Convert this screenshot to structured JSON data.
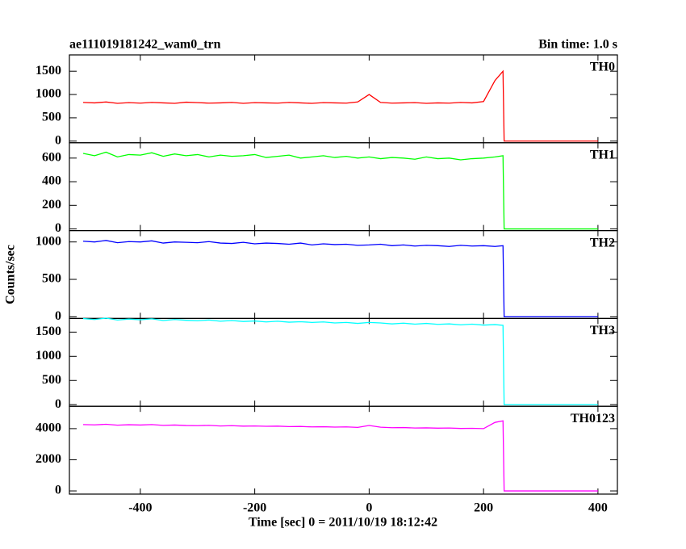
{
  "figure": {
    "title": "ae111019181242_wam0_trn",
    "bin_time": "Bin time: 1.0 s",
    "ylabel": "Counts/sec",
    "xlabel": "Time [sec] 0 = 2011/10/19 18:12:42"
  },
  "chart_data": [
    {
      "type": "line",
      "xlim": [
        -524,
        434
      ],
      "xticks": [
        -400,
        -200,
        0,
        200,
        400
      ],
      "ylim": [
        -35,
        1850
      ],
      "yticks": [
        0,
        500,
        1000,
        1500
      ],
      "x": [
        -500,
        -480,
        -460,
        -440,
        -420,
        -400,
        -380,
        -360,
        -340,
        -320,
        -300,
        -280,
        -260,
        -240,
        -220,
        -200,
        -180,
        -160,
        -140,
        -120,
        -100,
        -80,
        -60,
        -40,
        -20,
        0,
        20,
        40,
        60,
        80,
        100,
        120,
        140,
        160,
        180,
        200,
        220,
        234,
        236,
        240,
        260,
        280,
        300,
        320,
        340,
        360,
        380,
        400
      ],
      "series": [
        {
          "name": "TH0",
          "color": "#ff0000",
          "values": [
            830,
            820,
            840,
            810,
            825,
            815,
            830,
            820,
            810,
            835,
            825,
            815,
            820,
            830,
            810,
            825,
            820,
            815,
            830,
            820,
            810,
            825,
            820,
            815,
            840,
            1000,
            830,
            815,
            820,
            825,
            810,
            820,
            815,
            830,
            820,
            850,
            1300,
            1500,
            0,
            0,
            0,
            0,
            0,
            0,
            0,
            0,
            0,
            0
          ]
        }
      ]
    },
    {
      "type": "line",
      "xlim": [
        -524,
        434
      ],
      "xticks": [
        -400,
        -200,
        0,
        200,
        400
      ],
      "ylim": [
        -14,
        730
      ],
      "yticks": [
        0,
        200,
        400,
        600
      ],
      "x": [
        -500,
        -480,
        -460,
        -440,
        -420,
        -400,
        -380,
        -360,
        -340,
        -320,
        -300,
        -280,
        -260,
        -240,
        -220,
        -200,
        -180,
        -160,
        -140,
        -120,
        -100,
        -80,
        -60,
        -40,
        -20,
        0,
        20,
        40,
        60,
        80,
        100,
        120,
        140,
        160,
        180,
        200,
        220,
        234,
        236,
        240,
        260,
        280,
        300,
        320,
        340,
        360,
        380,
        400
      ],
      "series": [
        {
          "name": "TH1",
          "color": "#00ff00",
          "values": [
            640,
            620,
            650,
            610,
            630,
            625,
            645,
            615,
            635,
            620,
            630,
            610,
            625,
            615,
            620,
            630,
            605,
            615,
            625,
            600,
            610,
            620,
            605,
            615,
            600,
            610,
            595,
            605,
            600,
            590,
            610,
            595,
            600,
            585,
            595,
            600,
            610,
            620,
            0,
            0,
            0,
            0,
            0,
            0,
            0,
            0,
            0,
            0
          ]
        }
      ]
    },
    {
      "type": "line",
      "xlim": [
        -524,
        434
      ],
      "xticks": [
        -400,
        -200,
        0,
        200,
        400
      ],
      "ylim": [
        -22,
        1152
      ],
      "yticks": [
        0,
        500,
        1000
      ],
      "x": [
        -500,
        -480,
        -460,
        -440,
        -420,
        -400,
        -380,
        -360,
        -340,
        -320,
        -300,
        -280,
        -260,
        -240,
        -220,
        -200,
        -180,
        -160,
        -140,
        -120,
        -100,
        -80,
        -60,
        -40,
        -20,
        0,
        20,
        40,
        60,
        80,
        100,
        120,
        140,
        160,
        180,
        200,
        220,
        234,
        236,
        240,
        260,
        280,
        300,
        320,
        340,
        360,
        380,
        400
      ],
      "series": [
        {
          "name": "TH2",
          "color": "#0000ff",
          "values": [
            1010,
            1000,
            1020,
            990,
            1005,
            1000,
            1015,
            985,
            1000,
            995,
            990,
            1005,
            985,
            980,
            995,
            975,
            985,
            980,
            970,
            985,
            960,
            975,
            965,
            970,
            955,
            960,
            970,
            950,
            960,
            945,
            955,
            950,
            940,
            955,
            945,
            950,
            940,
            950,
            0,
            0,
            0,
            0,
            0,
            0,
            0,
            0,
            0,
            0
          ]
        }
      ]
    },
    {
      "type": "line",
      "xlim": [
        -524,
        434
      ],
      "xticks": [
        -400,
        -200,
        0,
        200,
        400
      ],
      "ylim": [
        -33,
        1783
      ],
      "yticks": [
        0,
        500,
        1000,
        1500
      ],
      "x": [
        -500,
        -480,
        -460,
        -440,
        -420,
        -400,
        -380,
        -360,
        -340,
        -320,
        -300,
        -280,
        -260,
        -240,
        -220,
        -200,
        -180,
        -160,
        -140,
        -120,
        -100,
        -80,
        -60,
        -40,
        -20,
        0,
        20,
        40,
        60,
        80,
        100,
        120,
        140,
        160,
        180,
        200,
        220,
        234,
        236,
        240,
        260,
        280,
        300,
        320,
        340,
        360,
        380,
        400
      ],
      "series": [
        {
          "name": "TH3",
          "color": "#00ffff",
          "values": [
            1780,
            1760,
            1790,
            1750,
            1770,
            1755,
            1775,
            1740,
            1760,
            1745,
            1735,
            1750,
            1725,
            1740,
            1720,
            1730,
            1710,
            1725,
            1705,
            1715,
            1700,
            1710,
            1690,
            1700,
            1680,
            1700,
            1690,
            1670,
            1685,
            1665,
            1680,
            1660,
            1670,
            1650,
            1665,
            1645,
            1655,
            1640,
            0,
            0,
            0,
            0,
            0,
            0,
            0,
            0,
            0,
            0
          ]
        }
      ]
    },
    {
      "type": "line",
      "xlim": [
        -524,
        434
      ],
      "xticks": [
        -400,
        -200,
        0,
        200,
        400
      ],
      "ylim": [
        -205,
        5436
      ],
      "yticks": [
        0,
        2000,
        4000
      ],
      "x": [
        -500,
        -480,
        -460,
        -440,
        -420,
        -400,
        -380,
        -360,
        -340,
        -320,
        -300,
        -280,
        -260,
        -240,
        -220,
        -200,
        -180,
        -160,
        -140,
        -120,
        -100,
        -80,
        -60,
        -40,
        -20,
        0,
        20,
        40,
        60,
        80,
        100,
        120,
        140,
        160,
        180,
        200,
        220,
        234,
        236,
        240,
        260,
        280,
        300,
        320,
        340,
        360,
        380,
        400
      ],
      "series": [
        {
          "name": "TH0123",
          "color": "#ff00ff",
          "values": [
            4260,
            4240,
            4280,
            4220,
            4250,
            4230,
            4260,
            4210,
            4230,
            4200,
            4190,
            4210,
            4170,
            4190,
            4160,
            4170,
            4150,
            4160,
            4130,
            4140,
            4110,
            4120,
            4100,
            4110,
            4080,
            4200,
            4090,
            4060,
            4070,
            4040,
            4050,
            4030,
            4040,
            4010,
            4020,
            4000,
            4400,
            4500,
            0,
            0,
            0,
            0,
            0,
            0,
            0,
            0,
            0,
            0
          ]
        }
      ]
    }
  ]
}
